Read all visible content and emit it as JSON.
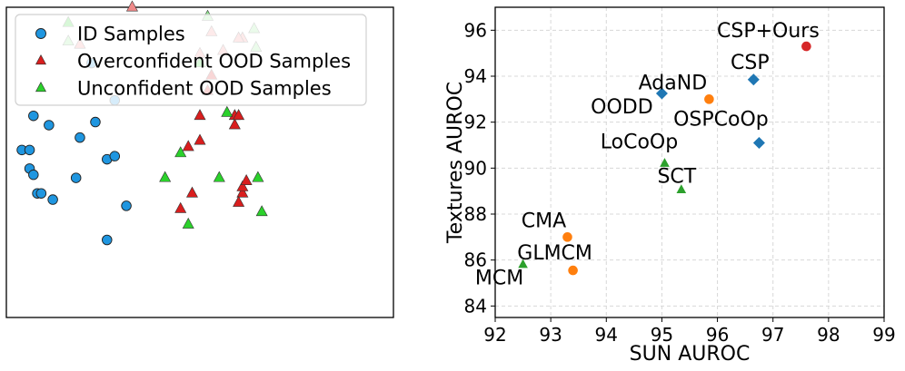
{
  "chart_data": [
    {
      "type": "scatter",
      "title": "",
      "xlabel": "",
      "ylabel": "",
      "axes_visible": false,
      "grid": false,
      "legend_position": "top-left",
      "legend": [
        {
          "label": "ID Samples",
          "marker": "circle",
          "color": "#1f96e0"
        },
        {
          "label": "Overconfident OOD Samples",
          "marker": "triangle",
          "color": "#d91e1e"
        },
        {
          "label": "Unconfident OOD Samples",
          "marker": "triangle",
          "color": "#2bd12b"
        }
      ],
      "series": [
        {
          "name": "ID Samples",
          "color": "#1f96e0",
          "marker": "circle",
          "points": [
            [
              0.08,
              0.4
            ],
            [
              0.06,
              0.48
            ],
            [
              0.07,
              0.46
            ],
            [
              0.04,
              0.54
            ],
            [
              0.06,
              0.54
            ],
            [
              0.11,
              0.62
            ],
            [
              0.18,
              0.45
            ],
            [
              0.19,
              0.58
            ],
            [
              0.12,
              0.38
            ],
            [
              0.09,
              0.4
            ],
            [
              0.07,
              0.65
            ],
            [
              0.23,
              0.63
            ],
            [
              0.26,
              0.51
            ],
            [
              0.28,
              0.52
            ],
            [
              0.31,
              0.36
            ],
            [
              0.26,
              0.25
            ],
            [
              0.28,
              0.7
            ],
            [
              0.22,
              0.82
            ]
          ]
        },
        {
          "name": "Overconfident OOD Samples",
          "color": "#d91e1e",
          "marker": "triangle",
          "points": [
            [
              0.5,
              0.65
            ],
            [
              0.47,
              0.55
            ],
            [
              0.45,
              0.35
            ],
            [
              0.48,
              0.4
            ],
            [
              0.52,
              0.73
            ],
            [
              0.5,
              0.57
            ],
            [
              0.59,
              0.62
            ],
            [
              0.59,
              0.65
            ],
            [
              0.6,
              0.65
            ],
            [
              0.61,
              0.4
            ],
            [
              0.61,
              0.42
            ],
            [
              0.6,
              0.37
            ],
            [
              0.62,
              0.44
            ],
            [
              0.53,
              0.78
            ]
          ]
        },
        {
          "name": "Overconfident OOD Samples (faded)",
          "color": "#f08a8a",
          "marker": "triangle",
          "points": [
            [
              0.325,
              1.0
            ],
            [
              0.5,
              0.85
            ],
            [
              0.53,
              0.92
            ],
            [
              0.56,
              0.86
            ],
            [
              0.61,
              0.9
            ],
            [
              0.19,
              0.88
            ],
            [
              0.6,
              0.9
            ]
          ]
        },
        {
          "name": "Unconfident OOD Samples",
          "color": "#2bd12b",
          "marker": "triangle",
          "points": [
            [
              0.41,
              0.45
            ],
            [
              0.45,
              0.53
            ],
            [
              0.5,
              0.82
            ],
            [
              0.57,
              0.66
            ],
            [
              0.55,
              0.45
            ],
            [
              0.65,
              0.45
            ],
            [
              0.66,
              0.34
            ],
            [
              0.47,
              0.3
            ],
            [
              0.16,
              0.95
            ]
          ]
        },
        {
          "name": "Unconfident OOD Samples (faded)",
          "color": "#90ea90",
          "marker": "triangle",
          "points": [
            [
              0.16,
              0.89
            ],
            [
              0.52,
              0.97
            ],
            [
              0.64,
              0.93
            ],
            [
              0.645,
              0.87
            ]
          ]
        }
      ]
    },
    {
      "type": "scatter",
      "title": "",
      "xlabel": "SUN AUROC",
      "ylabel": "Textures AUROC",
      "xlim": [
        92,
        99
      ],
      "ylim": [
        83.5,
        97
      ],
      "xticks": [
        "92",
        "93",
        "94",
        "95",
        "96",
        "97",
        "98",
        "99"
      ],
      "yticks": [
        "84",
        "86",
        "88",
        "90",
        "92",
        "94",
        "96"
      ],
      "grid": true,
      "points": [
        {
          "label": "CSP+Ours",
          "x": 97.6,
          "y": 95.3,
          "color": "#d62728",
          "marker": "circle"
        },
        {
          "label": "CSP",
          "x": 96.65,
          "y": 93.85,
          "color": "#1f77b4",
          "marker": "diamond"
        },
        {
          "label": "OODD",
          "x": 95.0,
          "y": 93.25,
          "color": "#1f77b4",
          "marker": "diamond"
        },
        {
          "label": "AdaND",
          "x": 95.85,
          "y": 93.0,
          "color": "#ff7f0e",
          "marker": "circle"
        },
        {
          "label": "OSPCoOp",
          "x": 96.75,
          "y": 91.1,
          "color": "#1f77b4",
          "marker": "diamond"
        },
        {
          "label": "LoCoOp",
          "x": 95.05,
          "y": 90.2,
          "color": "#2ca02c",
          "marker": "triangle"
        },
        {
          "label": "SCT",
          "x": 95.35,
          "y": 89.05,
          "color": "#2ca02c",
          "marker": "triangle"
        },
        {
          "label": "CMA",
          "x": 93.3,
          "y": 87.0,
          "color": "#ff7f0e",
          "marker": "circle"
        },
        {
          "label": "GLMCM",
          "x": 93.4,
          "y": 85.55,
          "color": "#ff7f0e",
          "marker": "circle"
        },
        {
          "label": "MCM",
          "x": 92.5,
          "y": 85.8,
          "color": "#2ca02c",
          "marker": "triangle"
        }
      ]
    }
  ]
}
